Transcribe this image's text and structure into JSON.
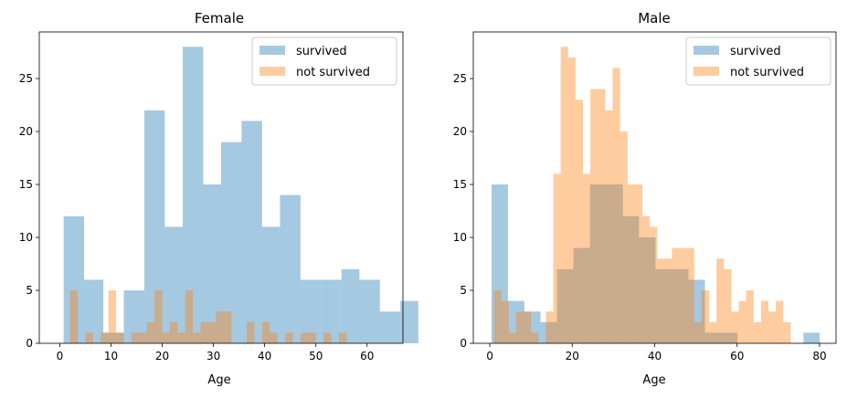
{
  "colors": {
    "survived": "#1f77b4",
    "not_survived": "#ff7f0e",
    "alpha": 0.4
  },
  "chart_data": [
    {
      "type": "histogram",
      "title": "Female",
      "xlabel": "Age",
      "xlim": [
        -4,
        67
      ],
      "ylim": [
        0,
        29.4
      ],
      "xticks": [
        0,
        10,
        20,
        30,
        40,
        50,
        60
      ],
      "yticks": [
        0,
        5,
        10,
        15,
        20,
        25
      ],
      "legend": "upper-right",
      "series": [
        {
          "name": "survived",
          "color_key": "survived",
          "bins": [
            [
              0.75,
              4.75,
              12
            ],
            [
              4.75,
              8.5,
              6
            ],
            [
              8.5,
              12.5,
              1
            ],
            [
              12.5,
              16.5,
              5
            ],
            [
              16.5,
              20.5,
              22
            ],
            [
              20.5,
              24,
              11
            ],
            [
              24,
              28,
              28
            ],
            [
              28,
              31.5,
              15
            ],
            [
              31.5,
              35.5,
              19
            ],
            [
              35.5,
              39.5,
              21
            ],
            [
              39.5,
              43,
              11
            ],
            [
              43,
              47,
              14
            ],
            [
              47,
              51,
              6
            ],
            [
              51,
              55,
              6
            ],
            [
              55,
              58.5,
              7
            ],
            [
              58.5,
              62.5,
              6
            ],
            [
              62.5,
              66.5,
              3
            ],
            [
              66.5,
              70,
              4
            ]
          ]
        },
        {
          "name": "not survived",
          "color_key": "not_survived",
          "bins": [
            [
              2,
              3.5,
              5
            ],
            [
              3.5,
              5,
              0
            ],
            [
              5,
              6.5,
              1
            ],
            [
              6.5,
              8,
              0
            ],
            [
              8,
              9.5,
              1
            ],
            [
              9.5,
              11,
              5
            ],
            [
              11,
              12.5,
              1
            ],
            [
              12.5,
              14,
              0
            ],
            [
              14,
              15.5,
              1
            ],
            [
              15.5,
              17,
              1
            ],
            [
              17,
              18.5,
              2
            ],
            [
              18.5,
              20,
              5
            ],
            [
              20,
              21.5,
              1
            ],
            [
              21.5,
              23,
              2
            ],
            [
              23,
              24.5,
              1
            ],
            [
              24.5,
              26,
              5
            ],
            [
              26,
              27.5,
              1
            ],
            [
              27.5,
              29,
              2
            ],
            [
              29,
              30.5,
              2
            ],
            [
              30.5,
              32,
              3
            ],
            [
              32,
              33.5,
              3
            ],
            [
              33.5,
              36.5,
              0
            ],
            [
              36.5,
              38,
              2
            ],
            [
              38,
              39.5,
              0
            ],
            [
              39.5,
              41,
              2
            ],
            [
              41,
              42.5,
              1
            ],
            [
              42.5,
              44,
              0
            ],
            [
              44,
              45.5,
              1
            ],
            [
              45.5,
              47,
              0
            ],
            [
              47,
              48.5,
              1
            ],
            [
              48.5,
              50,
              1
            ],
            [
              50,
              51.5,
              0
            ],
            [
              51.5,
              53,
              1
            ],
            [
              53,
              54.5,
              0
            ],
            [
              54.5,
              56,
              1
            ],
            [
              56,
              57,
              0
            ]
          ]
        }
      ]
    },
    {
      "type": "histogram",
      "title": "Male",
      "xlabel": "Age",
      "xlim": [
        -4,
        84
      ],
      "ylim": [
        0,
        29.4
      ],
      "xticks": [
        0,
        20,
        40,
        60,
        80
      ],
      "yticks": [
        0,
        5,
        10,
        15,
        20,
        25
      ],
      "legend": "upper-right",
      "series": [
        {
          "name": "survived",
          "color_key": "survived",
          "bins": [
            [
              0.42,
              4.4,
              15
            ],
            [
              4.4,
              8.4,
              4
            ],
            [
              8.4,
              12.3,
              3
            ],
            [
              12.3,
              16.3,
              2
            ],
            [
              16.3,
              20.3,
              7
            ],
            [
              20.3,
              24.3,
              9
            ],
            [
              24.3,
              28.3,
              15
            ],
            [
              28.3,
              32.3,
              15
            ],
            [
              32.3,
              36.2,
              12
            ],
            [
              36.2,
              40.2,
              10
            ],
            [
              40.2,
              44.2,
              7
            ],
            [
              44.2,
              48.2,
              7
            ],
            [
              48.2,
              52.2,
              6
            ],
            [
              52.2,
              56.2,
              1
            ],
            [
              56.2,
              60.1,
              1
            ],
            [
              60.1,
              64.1,
              0
            ],
            [
              64.1,
              68.1,
              0
            ],
            [
              68.1,
              72.1,
              0
            ],
            [
              72.1,
              76.1,
              0
            ],
            [
              76.1,
              80,
              1
            ]
          ]
        },
        {
          "name": "not survived",
          "color_key": "not_survived",
          "bins": [
            [
              1,
              2.8,
              5
            ],
            [
              2.8,
              4.6,
              4
            ],
            [
              4.6,
              6.4,
              1
            ],
            [
              6.4,
              8.2,
              3
            ],
            [
              8.2,
              10,
              3
            ],
            [
              10,
              11.8,
              1
            ],
            [
              11.8,
              13.6,
              0
            ],
            [
              13.6,
              15.4,
              3
            ],
            [
              15.4,
              17.2,
              16
            ],
            [
              17.2,
              19,
              28
            ],
            [
              19,
              20.8,
              27
            ],
            [
              20.8,
              22.6,
              23
            ],
            [
              22.6,
              24.4,
              16
            ],
            [
              24.4,
              26.2,
              24
            ],
            [
              26.2,
              28,
              24
            ],
            [
              28,
              29.8,
              22
            ],
            [
              29.8,
              31.6,
              26
            ],
            [
              31.6,
              33.4,
              20
            ],
            [
              33.4,
              35.2,
              15
            ],
            [
              35.2,
              37,
              15
            ],
            [
              37,
              38.8,
              12
            ],
            [
              38.8,
              40.6,
              11
            ],
            [
              40.6,
              42.4,
              8
            ],
            [
              42.4,
              44.2,
              8
            ],
            [
              44.2,
              46,
              9
            ],
            [
              46,
              47.8,
              9
            ],
            [
              47.8,
              49.6,
              9
            ],
            [
              49.6,
              51.4,
              2
            ],
            [
              51.4,
              53.2,
              5
            ],
            [
              53.2,
              55,
              2
            ],
            [
              55,
              56.8,
              8
            ],
            [
              56.8,
              58.6,
              7
            ],
            [
              58.6,
              60.4,
              3
            ],
            [
              60.4,
              62.2,
              4
            ],
            [
              62.2,
              64,
              5
            ],
            [
              64,
              65.8,
              2
            ],
            [
              65.8,
              67.6,
              4
            ],
            [
              67.6,
              69.4,
              3
            ],
            [
              69.4,
              71.2,
              4
            ],
            [
              71.2,
              73,
              2
            ]
          ]
        }
      ]
    }
  ]
}
